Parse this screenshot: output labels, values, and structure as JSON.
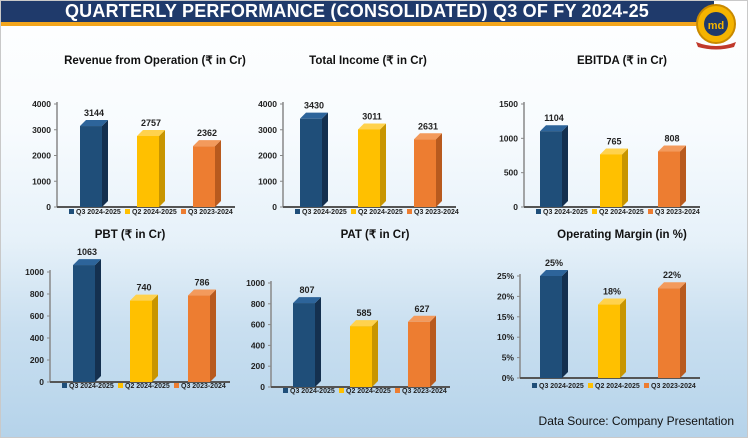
{
  "header": {
    "title": "QUARTERLY PERFORMANCE (CONSOLIDATED) Q3 OF FY 2024-25"
  },
  "logo": {
    "text": "md",
    "icon": "company-seal-logo"
  },
  "footer": {
    "source": "Data Source: Company Presentation"
  },
  "colors": {
    "header_bg": "#1f3a6b",
    "stripe": "#f2a51c",
    "q3_2425": "#1f4e79",
    "q2_2425": "#ffc000",
    "q3_2324": "#ed7d31"
  },
  "chart_data": [
    {
      "type": "bar",
      "title": "Revenue from Operation (₹  in Cr)",
      "categories": [
        "Q3 2024-2025",
        "Q2 2024-2025",
        "Q3 2023-2024"
      ],
      "values": [
        3144,
        2757,
        2362
      ],
      "data_labels": [
        "3144",
        "2757",
        "2362"
      ],
      "ylim": [
        0,
        4000
      ],
      "yticks": [
        "0",
        "1000",
        "2000",
        "3000",
        "4000"
      ],
      "legend": "bottom",
      "grid": false
    },
    {
      "type": "bar",
      "title": "Total Income  (₹ in Cr)",
      "categories": [
        "Q3 2024-2025",
        "Q2 2024-2025",
        "Q3 2023-2024"
      ],
      "values": [
        3430,
        3011,
        2631
      ],
      "data_labels": [
        "3430",
        "3011",
        "2631"
      ],
      "ylim": [
        0,
        4000
      ],
      "yticks": [
        "0",
        "1000",
        "2000",
        "3000",
        "4000"
      ],
      "legend": "bottom",
      "grid": false
    },
    {
      "type": "bar",
      "title": "EBITDA (₹ in Cr)",
      "categories": [
        "Q3 2024-2025",
        "Q2 2024-2025",
        "Q3 2023-2024"
      ],
      "values": [
        1104,
        765,
        808
      ],
      "data_labels": [
        "1104",
        "765",
        "808"
      ],
      "ylim": [
        0,
        1500
      ],
      "yticks": [
        "0",
        "500",
        "1000",
        "1500"
      ],
      "legend": "bottom",
      "grid": false
    },
    {
      "type": "bar",
      "title": "PBT (₹ in Cr)",
      "categories": [
        "Q3 2024-2025",
        "Q2 2024-2025",
        "Q3 2023-2024"
      ],
      "values": [
        1063,
        740,
        786
      ],
      "data_labels": [
        "1063",
        "740",
        "786"
      ],
      "ylim": [
        0,
        1000
      ],
      "yticks": [
        "0",
        "200",
        "400",
        "600",
        "800",
        "1000"
      ],
      "legend": "bottom",
      "grid": false
    },
    {
      "type": "bar",
      "title": "PAT (₹ in Cr)",
      "categories": [
        "Q3 2024-2025",
        "Q2 2024-2025",
        "Q3 2023-2024"
      ],
      "values": [
        807,
        585,
        627
      ],
      "data_labels": [
        "807",
        "585",
        "627"
      ],
      "ylim": [
        0,
        1000
      ],
      "yticks": [
        "0",
        "200",
        "400",
        "600",
        "800",
        "1000"
      ],
      "legend": "bottom",
      "grid": false
    },
    {
      "type": "bar",
      "title": "Operating Margin (in %)",
      "categories": [
        "Q3 2024-2025",
        "Q2 2024-2025",
        "Q3 2023-2024"
      ],
      "values": [
        25,
        18,
        22
      ],
      "data_labels": [
        "25%",
        "18%",
        "22%"
      ],
      "ylim": [
        0,
        25
      ],
      "yticks": [
        "0%",
        "5%",
        "10%",
        "15%",
        "20%",
        "25%"
      ],
      "legend": "bottom",
      "grid": false
    }
  ]
}
